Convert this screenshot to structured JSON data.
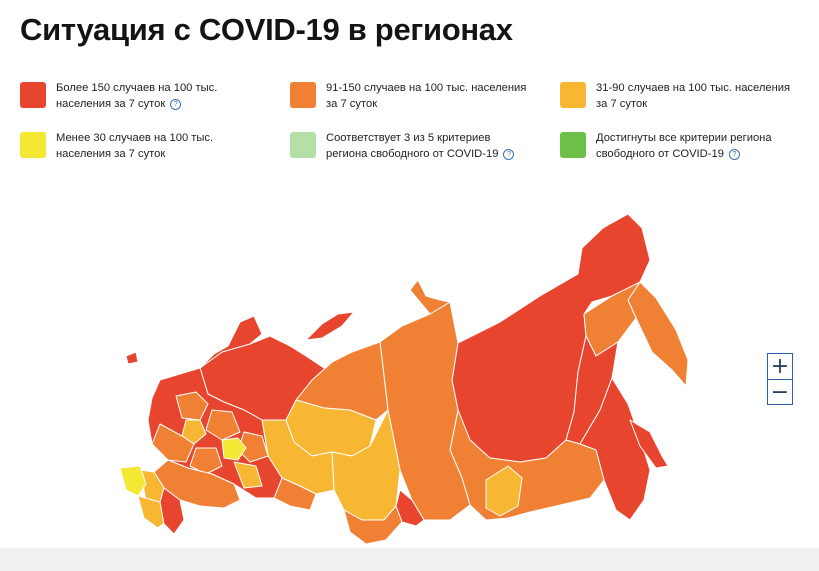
{
  "title": "Ситуация с COVID-19 в регионах",
  "legend": [
    {
      "color": "#e8452f",
      "line1": "Более 150 случаев на 100 тыс.",
      "line2": "населения за 7 суток",
      "help": true
    },
    {
      "color": "#f08033",
      "line1": "91-150 случаев на 100 тыс. населения",
      "line2": "за 7 суток",
      "help": false
    },
    {
      "color": "#f7b733",
      "line1": "31-90 случаев на 100 тыс. населения",
      "line2": "за 7 суток",
      "help": false
    },
    {
      "color": "#f5e834",
      "line1": "Менее 30 случаев на 100 тыс.",
      "line2": "населения за 7 суток",
      "help": false
    },
    {
      "color": "#b4e0a6",
      "line1": "Соответствует 3 из 5 критериев",
      "line2": "региона свободного от COVID-19",
      "help": true
    },
    {
      "color": "#6cc04a",
      "line1": "Достигнуты все критерии региона",
      "line2": "свободного от COVID-19",
      "help": true
    }
  ],
  "help_glyph": "?",
  "zoom": {
    "in": "+",
    "out": "−"
  },
  "map": {
    "colors": {
      "red": "#e8452f",
      "orange": "#f08033",
      "amber": "#f7b733",
      "yellow": "#f5e834",
      "border": "#ffffff"
    }
  }
}
